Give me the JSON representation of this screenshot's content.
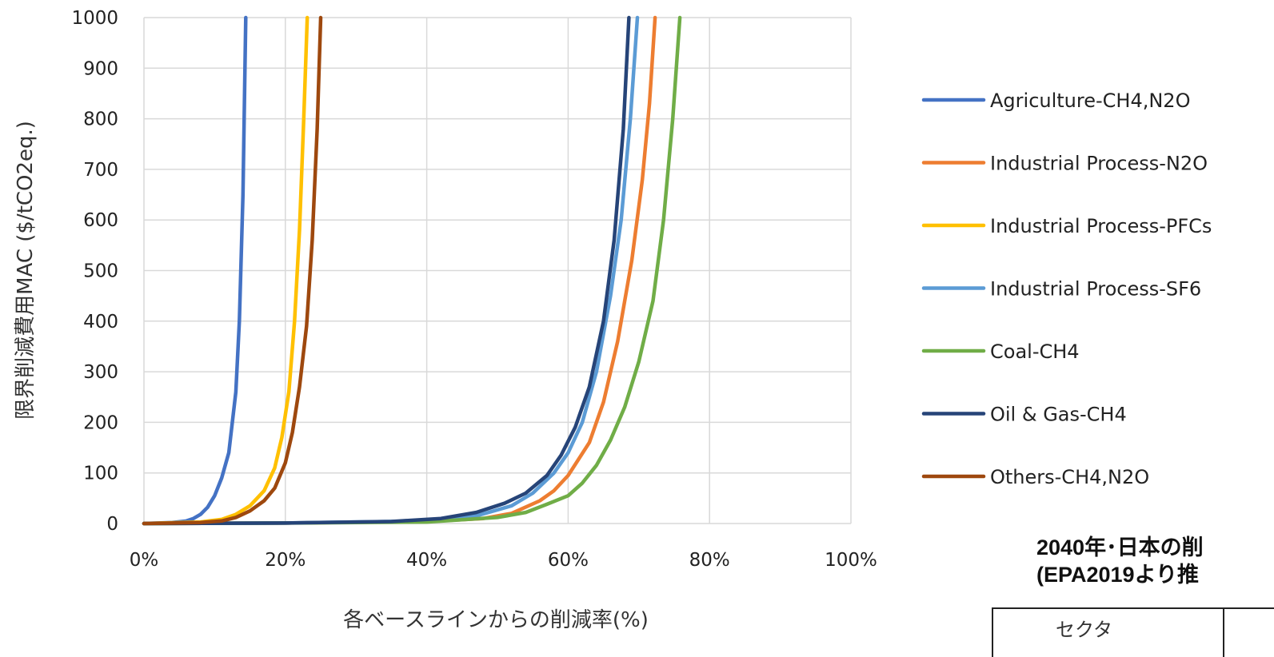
{
  "chart_data": {
    "type": "line",
    "xlabel": "各ベースラインからの削減率(%)",
    "ylabel": "限界削減費用MAC ($/tCO2eq.)",
    "xlim": [
      0,
      100
    ],
    "ylim": [
      0,
      1000
    ],
    "x_ticks": [
      "0%",
      "20%",
      "40%",
      "60%",
      "80%",
      "100%"
    ],
    "y_ticks": [
      "0",
      "100",
      "200",
      "300",
      "400",
      "500",
      "600",
      "700",
      "800",
      "900",
      "1000"
    ],
    "grid": true,
    "legend_position": "right",
    "series": [
      {
        "name": "Agriculture-CH4,N2O",
        "color": "#4472C4",
        "points": [
          [
            0,
            0
          ],
          [
            4,
            2
          ],
          [
            6,
            5
          ],
          [
            7,
            10
          ],
          [
            8,
            18
          ],
          [
            9,
            32
          ],
          [
            10,
            55
          ],
          [
            11,
            90
          ],
          [
            12,
            140
          ],
          [
            13,
            260
          ],
          [
            13.5,
            400
          ],
          [
            14,
            650
          ],
          [
            14.4,
            1000
          ]
        ]
      },
      {
        "name": "Industrial Process-N2O",
        "color": "#ED7D31",
        "points": [
          [
            0,
            0
          ],
          [
            20,
            1
          ],
          [
            40,
            4
          ],
          [
            48,
            10
          ],
          [
            52,
            20
          ],
          [
            56,
            45
          ],
          [
            58,
            65
          ],
          [
            60,
            95
          ],
          [
            63,
            160
          ],
          [
            65,
            240
          ],
          [
            67,
            360
          ],
          [
            69,
            520
          ],
          [
            70.5,
            680
          ],
          [
            71.5,
            830
          ],
          [
            72.3,
            1000
          ]
        ]
      },
      {
        "name": "Industrial Process-PFCs",
        "color": "#FFC000",
        "points": [
          [
            0,
            0
          ],
          [
            8,
            3
          ],
          [
            11,
            8
          ],
          [
            13,
            18
          ],
          [
            15,
            35
          ],
          [
            17,
            65
          ],
          [
            18.5,
            110
          ],
          [
            19.5,
            170
          ],
          [
            20.5,
            260
          ],
          [
            21.3,
            400
          ],
          [
            22,
            580
          ],
          [
            22.6,
            800
          ],
          [
            23.1,
            1000
          ]
        ]
      },
      {
        "name": "Industrial Process-SF6",
        "color": "#5B9BD5",
        "points": [
          [
            0,
            0
          ],
          [
            20,
            1
          ],
          [
            40,
            5
          ],
          [
            47,
            15
          ],
          [
            52,
            35
          ],
          [
            55,
            60
          ],
          [
            58,
            100
          ],
          [
            60,
            140
          ],
          [
            62,
            200
          ],
          [
            64,
            300
          ],
          [
            66,
            450
          ],
          [
            67.5,
            600
          ],
          [
            68.8,
            800
          ],
          [
            69.8,
            1000
          ]
        ]
      },
      {
        "name": "Coal-CH4",
        "color": "#70AD47",
        "points": [
          [
            0,
            0
          ],
          [
            20,
            1
          ],
          [
            40,
            3
          ],
          [
            50,
            12
          ],
          [
            54,
            22
          ],
          [
            57,
            38
          ],
          [
            60,
            55
          ],
          [
            62,
            80
          ],
          [
            64,
            115
          ],
          [
            66,
            165
          ],
          [
            68,
            230
          ],
          [
            70,
            320
          ],
          [
            72,
            440
          ],
          [
            73.5,
            600
          ],
          [
            74.8,
            800
          ],
          [
            75.8,
            1000
          ]
        ]
      },
      {
        "name": "Oil & Gas-CH4",
        "color": "#264478",
        "points": [
          [
            0,
            0
          ],
          [
            20,
            1
          ],
          [
            35,
            4
          ],
          [
            42,
            10
          ],
          [
            47,
            22
          ],
          [
            51,
            40
          ],
          [
            54,
            60
          ],
          [
            57,
            95
          ],
          [
            59,
            135
          ],
          [
            61,
            190
          ],
          [
            63,
            270
          ],
          [
            65,
            400
          ],
          [
            66.5,
            560
          ],
          [
            67.8,
            780
          ],
          [
            68.6,
            1000
          ]
        ]
      },
      {
        "name": "Others-CH4,N2O",
        "color": "#9E480E",
        "points": [
          [
            0,
            0
          ],
          [
            8,
            2
          ],
          [
            11,
            5
          ],
          [
            13,
            12
          ],
          [
            15,
            25
          ],
          [
            17,
            45
          ],
          [
            18.5,
            70
          ],
          [
            20,
            120
          ],
          [
            21,
            180
          ],
          [
            22,
            270
          ],
          [
            23,
            390
          ],
          [
            23.8,
            560
          ],
          [
            24.5,
            780
          ],
          [
            25,
            1000
          ]
        ]
      }
    ]
  },
  "note": {
    "line1": "2040年･日本の削",
    "line2": "(EPA2019より推"
  },
  "table": {
    "header_cell": "セクタ"
  }
}
